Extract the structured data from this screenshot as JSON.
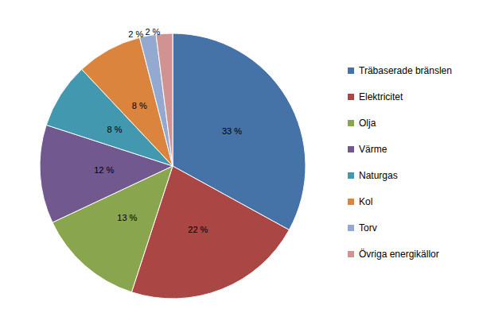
{
  "chart_data": {
    "type": "pie",
    "categories": [
      "Träbaserade bränslen",
      "Elektricitet",
      "Olja",
      "Värme",
      "Naturgas",
      "Kol",
      "Torv",
      "Övriga energikällor"
    ],
    "values": [
      33,
      22,
      13,
      12,
      8,
      8,
      2,
      2
    ],
    "value_labels": [
      "33 %",
      "22 %",
      "13 %",
      "12 %",
      "8 %",
      "8 %",
      "2 %",
      "2 %"
    ],
    "colors": [
      "#4572A7",
      "#AA4643",
      "#89A54E",
      "#71588F",
      "#4198AF",
      "#DB843D",
      "#93A9CF",
      "#D19392"
    ],
    "data_labels": true,
    "legend": "right"
  }
}
